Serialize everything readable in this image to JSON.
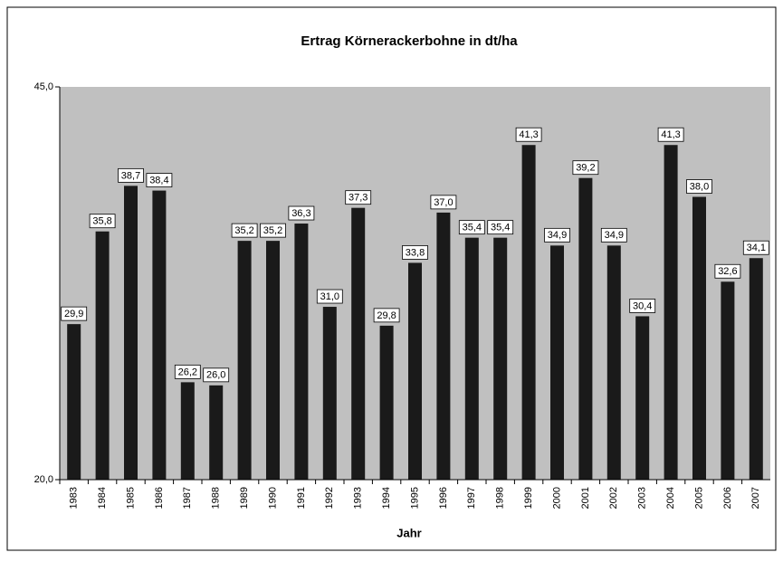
{
  "chart_data": {
    "type": "bar",
    "title": "Ertrag Körnerackerbohne in dt/ha",
    "x_label": "Jahr",
    "categories": [
      "1983",
      "1984",
      "1985",
      "1986",
      "1987",
      "1988",
      "1989",
      "1990",
      "1991",
      "1992",
      "1993",
      "1994",
      "1995",
      "1996",
      "1997",
      "1998",
      "1999",
      "2000",
      "2001",
      "2002",
      "2003",
      "2004",
      "2005",
      "2006",
      "2007"
    ],
    "values": [
      29.9,
      35.8,
      38.7,
      38.4,
      26.2,
      26.0,
      35.2,
      35.2,
      36.3,
      31.0,
      37.3,
      29.8,
      33.8,
      37.0,
      35.4,
      35.4,
      41.3,
      34.9,
      39.2,
      34.9,
      30.4,
      41.3,
      38.0,
      32.6,
      34.1
    ],
    "value_labels": [
      "29,9",
      "35,8",
      "38,7",
      "38,4",
      "26,2",
      "26,0",
      "35,2",
      "35,2",
      "36,3",
      "31,0",
      "37,3",
      "29,8",
      "33,8",
      "37,0",
      "35,4",
      "35,4",
      "41,3",
      "34,9",
      "39,2",
      "34,9",
      "30,4",
      "41,3",
      "38,0",
      "32,6",
      "34,1"
    ],
    "color": "#1a1a1a",
    "plot_background": "#c0c0c0",
    "ylim": [
      20,
      45
    ],
    "yticks": [
      {
        "value": 20,
        "label": "20,0"
      },
      {
        "value": 45,
        "label": "45,0"
      }
    ]
  }
}
